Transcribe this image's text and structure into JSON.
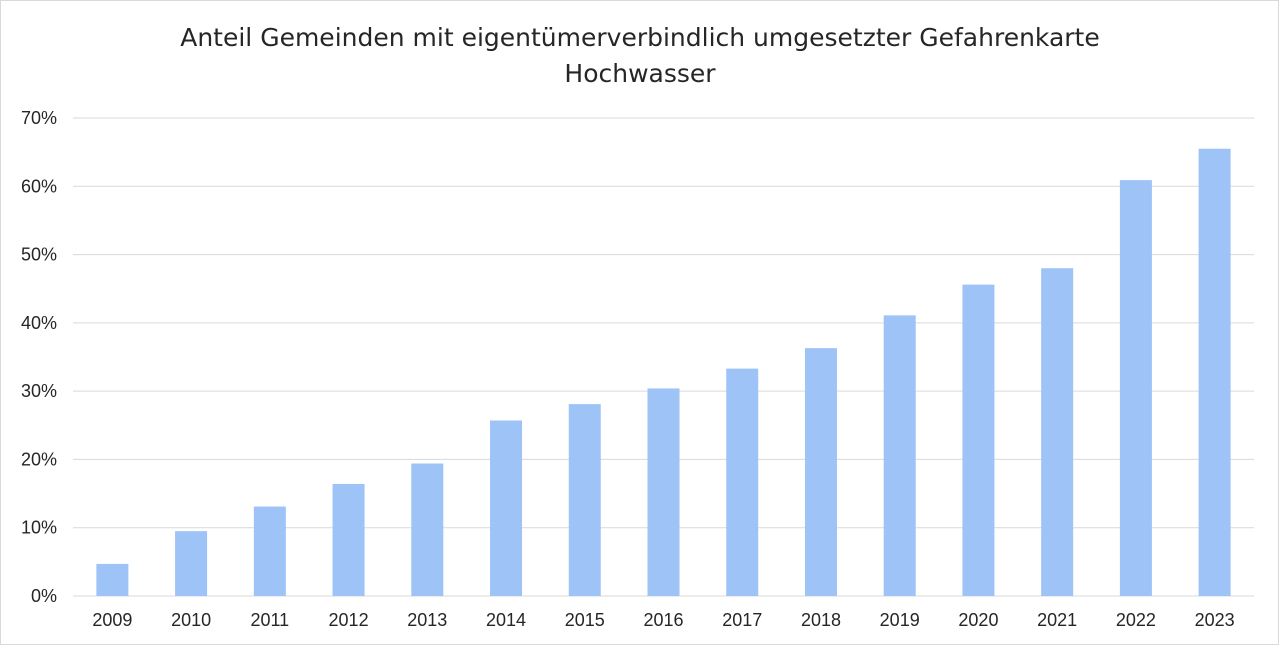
{
  "chart_data": {
    "type": "bar",
    "title_lines": [
      "Anteil Gemeinden mit eigentümerverbindlich umgesetzter Gefahrenkarte",
      "Hochwasser"
    ],
    "xlabel": "",
    "ylabel": "",
    "categories": [
      "2009",
      "2010",
      "2011",
      "2012",
      "2013",
      "2014",
      "2015",
      "2016",
      "2017",
      "2018",
      "2019",
      "2020",
      "2021",
      "2022",
      "2023"
    ],
    "values": [
      4.7,
      9.5,
      13.1,
      16.4,
      19.4,
      25.7,
      28.1,
      30.4,
      33.3,
      36.3,
      41.1,
      45.6,
      48.0,
      60.9,
      65.5
    ],
    "value_format": "percent",
    "ylim": [
      0,
      70
    ],
    "yticks": [
      0,
      10,
      20,
      30,
      40,
      50,
      60,
      70
    ],
    "ytick_labels": [
      "0%",
      "10%",
      "20%",
      "30%",
      "40%",
      "50%",
      "60%",
      "70%"
    ],
    "grid": "horizontal",
    "legend": "none",
    "bar_color": "#9dc3f7",
    "grid_color": "#d9d9d9"
  }
}
